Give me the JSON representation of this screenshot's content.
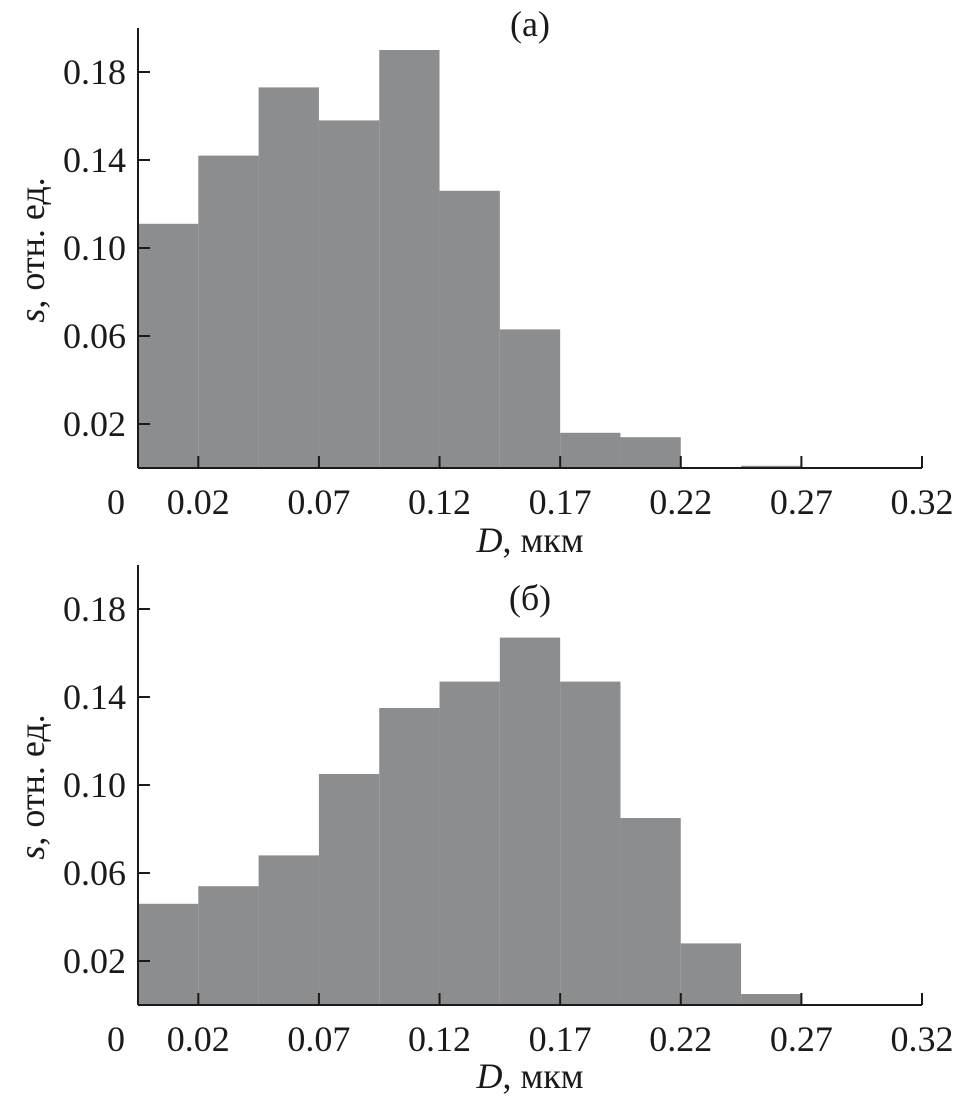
{
  "chart_data": [
    {
      "type": "bar",
      "panel_label": "(а)",
      "xlabel_var": "D",
      "xlabel_unit": ", мкм",
      "ylabel_var": "s",
      "ylabel_unit": ", отн. ед.",
      "bar_color": "#8c8d8f",
      "x_ticks": [
        "0",
        "0.02",
        "0.07",
        "0.12",
        "0.17",
        "0.22",
        "0.27",
        "0.32"
      ],
      "y_ticks": [
        "0.02",
        "0.06",
        "0.10",
        "0.14",
        "0.18"
      ],
      "x_range_um": [
        -0.005,
        0.32
      ],
      "ylim": [
        0,
        0.2
      ],
      "bin_width_um": 0.025,
      "bin_starts_um": [
        -0.005,
        0.02,
        0.045,
        0.07,
        0.095,
        0.12,
        0.145,
        0.17,
        0.195,
        0.22,
        0.245,
        0.27,
        0.295
      ],
      "values": [
        0.111,
        0.142,
        0.173,
        0.158,
        0.19,
        0.126,
        0.063,
        0.016,
        0.014,
        0.0,
        0.001,
        0.0,
        0.0
      ]
    },
    {
      "type": "bar",
      "panel_label": "(б)",
      "xlabel_var": "D",
      "xlabel_unit": ", мкм",
      "ylabel_var": "s",
      "ylabel_unit": ", отн. ед.",
      "bar_color": "#8c8d8f",
      "x_ticks": [
        "0",
        "0.02",
        "0.07",
        "0.12",
        "0.17",
        "0.22",
        "0.27",
        "0.32"
      ],
      "y_ticks": [
        "0.02",
        "0.06",
        "0.10",
        "0.14",
        "0.18"
      ],
      "x_range_um": [
        -0.005,
        0.32
      ],
      "ylim": [
        0,
        0.2
      ],
      "bin_width_um": 0.025,
      "bin_starts_um": [
        -0.005,
        0.02,
        0.045,
        0.07,
        0.095,
        0.12,
        0.145,
        0.17,
        0.195,
        0.22,
        0.245,
        0.27,
        0.295
      ],
      "values": [
        0.046,
        0.054,
        0.068,
        0.105,
        0.135,
        0.147,
        0.167,
        0.147,
        0.085,
        0.028,
        0.005,
        0.0,
        0.0
      ]
    }
  ]
}
